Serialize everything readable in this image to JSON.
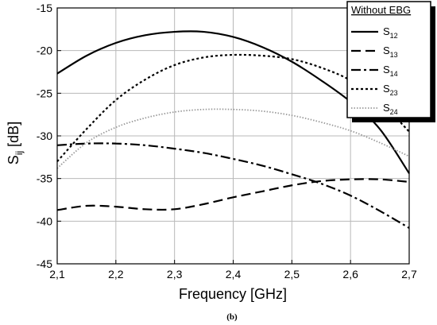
{
  "chart_data": {
    "type": "line",
    "xlabel": "Frequency [GHz]",
    "ylabel_main": "S",
    "ylabel_sub": "ij",
    "ylabel_unit": " [dB]",
    "xlim": [
      2.1,
      2.7
    ],
    "ylim": [
      -45,
      -15
    ],
    "xticks": [
      2.1,
      2.2,
      2.3,
      2.4,
      2.5,
      2.6,
      2.7
    ],
    "xtick_labels": [
      "2,1",
      "2,2",
      "2,3",
      "2,4",
      "2,5",
      "2,6",
      "2,7"
    ],
    "yticks": [
      -15,
      -20,
      -25,
      -30,
      -35,
      -40,
      -45
    ],
    "ytick_labels": [
      "-15",
      "-20",
      "-25",
      "-30",
      "-35",
      "-40",
      "-45"
    ],
    "grid": true,
    "legend": {
      "title": "Without  EBG",
      "placement": "top-right"
    },
    "caption": "(b)",
    "series": [
      {
        "name_main": "S",
        "name_sub": "12",
        "style": "solid",
        "x": [
          2.1,
          2.15,
          2.2,
          2.25,
          2.3,
          2.35,
          2.4,
          2.45,
          2.5,
          2.55,
          2.6,
          2.65,
          2.7
        ],
        "y": [
          -22.7,
          -20.6,
          -19.1,
          -18.2,
          -17.8,
          -17.8,
          -18.4,
          -19.6,
          -21.3,
          -23.5,
          -26.0,
          -29.2,
          -34.4
        ]
      },
      {
        "name_main": "S",
        "name_sub": "13",
        "style": "dashed",
        "x": [
          2.1,
          2.15,
          2.2,
          2.25,
          2.3,
          2.35,
          2.4,
          2.45,
          2.5,
          2.55,
          2.6,
          2.65,
          2.7
        ],
        "y": [
          -38.7,
          -38.2,
          -38.3,
          -38.6,
          -38.6,
          -38.0,
          -37.2,
          -36.5,
          -35.8,
          -35.3,
          -35.1,
          -35.1,
          -35.4
        ]
      },
      {
        "name_main": "S",
        "name_sub": "14",
        "style": "dashdot",
        "x": [
          2.1,
          2.15,
          2.2,
          2.25,
          2.3,
          2.35,
          2.4,
          2.45,
          2.5,
          2.55,
          2.6,
          2.65,
          2.7
        ],
        "y": [
          -31.1,
          -30.9,
          -30.9,
          -31.1,
          -31.5,
          -32.0,
          -32.7,
          -33.5,
          -34.5,
          -35.6,
          -37.0,
          -38.8,
          -40.8
        ]
      },
      {
        "name_main": "S",
        "name_sub": "23",
        "style": "dotted",
        "x": [
          2.1,
          2.15,
          2.2,
          2.25,
          2.3,
          2.35,
          2.4,
          2.45,
          2.5,
          2.55,
          2.6,
          2.65,
          2.7
        ],
        "y": [
          -33.0,
          -29.2,
          -25.8,
          -23.4,
          -21.7,
          -20.8,
          -20.5,
          -20.6,
          -21.0,
          -22.0,
          -23.5,
          -26.0,
          -29.5
        ]
      },
      {
        "name_main": "S",
        "name_sub": "24",
        "style": "fine-dotted",
        "x": [
          2.1,
          2.15,
          2.2,
          2.25,
          2.3,
          2.35,
          2.4,
          2.45,
          2.5,
          2.55,
          2.6,
          2.65,
          2.7
        ],
        "y": [
          -33.8,
          -30.8,
          -29.0,
          -27.9,
          -27.2,
          -26.9,
          -26.9,
          -27.1,
          -27.6,
          -28.4,
          -29.4,
          -30.8,
          -32.4
        ]
      }
    ]
  }
}
